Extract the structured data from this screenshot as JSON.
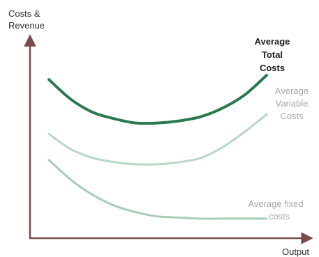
{
  "chart_data": {
    "type": "line",
    "ylabel": [
      "Costs &",
      "Revenue"
    ],
    "xlabel": "Output",
    "xlim": [
      0,
      100
    ],
    "ylim": [
      0,
      100
    ],
    "grid": false,
    "legend": "none",
    "series": [
      {
        "name": "Average Total Costs",
        "label_lines": [
          "Average",
          "Total",
          "Costs"
        ],
        "color": "#2a7a4e",
        "x": [
          0,
          10,
          20,
          30,
          40,
          50,
          60,
          70,
          80,
          90,
          100
        ],
        "y": [
          73,
          64,
          58,
          55,
          53,
          53,
          54,
          56,
          60,
          66,
          75
        ]
      },
      {
        "name": "Average Variable Costs",
        "label_lines": [
          "Average",
          "Variable",
          "Costs"
        ],
        "color": "#b8d7c5",
        "x": [
          0,
          10,
          20,
          30,
          40,
          50,
          60,
          70,
          80,
          90,
          100
        ],
        "y": [
          48,
          41,
          37,
          35,
          34,
          34,
          35,
          37,
          42,
          49,
          57
        ]
      },
      {
        "name": "Average fixed costs",
        "label_lines": [
          "Average fixed",
          "costs"
        ],
        "color": "#a8ccb6",
        "x": [
          0,
          10,
          20,
          30,
          40,
          50,
          60,
          70,
          80,
          90,
          100
        ],
        "y": [
          36,
          27,
          20,
          15,
          12,
          10,
          9.5,
          9,
          9,
          9,
          9
        ]
      }
    ]
  }
}
